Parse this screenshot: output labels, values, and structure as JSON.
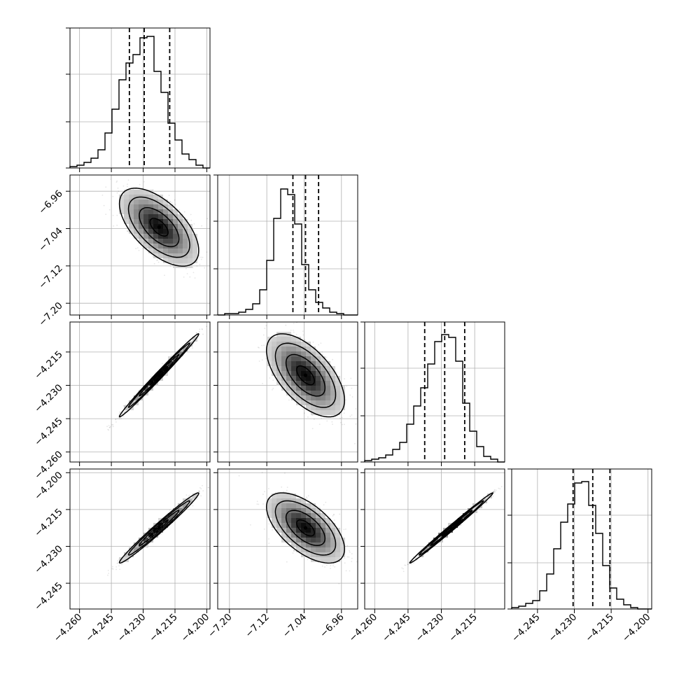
{
  "chart_data": {
    "type": "corner",
    "title": "",
    "parameters": [
      {
        "xlim": [
          -4.2645,
          -4.1985
        ],
        "xticks": [
          -4.26,
          -4.245,
          -4.23,
          -4.215,
          -4.2
        ],
        "xtick_labels": [
          "−4.260",
          "−4.245",
          "−4.230",
          "−4.215",
          "−4.200"
        ]
      },
      {
        "xlim": [
          -7.2252,
          -6.9252
        ],
        "xticks": [
          -7.2,
          -7.12,
          -7.04,
          -6.96
        ],
        "xtick_labels": [
          "−7.20",
          "−7.12",
          "−7.04",
          "−6.96"
        ]
      },
      {
        "xlim": [
          -4.2645,
          -4.2015
        ],
        "xticks": [
          -4.26,
          -4.245,
          -4.23,
          -4.215
        ],
        "xtick_labels": [
          "−4.260",
          "−4.245",
          "−4.230",
          "−4.215"
        ],
        "yticks": [
          -4.26,
          -4.245,
          -4.23,
          -4.215
        ],
        "ytick_labels": [
          "−4.260",
          "−4.245",
          "−4.230",
          "−4.215"
        ]
      },
      {
        "xlim": [
          -4.2555,
          -4.1985
        ],
        "xticks": [
          -4.245,
          -4.23,
          -4.215,
          -4.2
        ],
        "xtick_labels": [
          "−4.245",
          "−4.230",
          "−4.215",
          "−4.200"
        ],
        "yticks": [
          -4.245,
          -4.23,
          -4.215,
          -4.2
        ],
        "ytick_labels": [
          "−4.245",
          "−4.230",
          "−4.215",
          "−4.200"
        ]
      }
    ],
    "row1_yticks": [
      -7.2,
      -7.12,
      -7.04,
      -6.96
    ],
    "row1_ytick_labels": [
      "−7.20",
      "−7.12",
      "−7.04",
      "−6.96"
    ],
    "row1_ylim": [
      -7.2252,
      -6.9252
    ],
    "row2_ylim": [
      -4.2645,
      -4.2015
    ],
    "row3_ylim": [
      -4.2555,
      -4.1985
    ],
    "histograms": [
      {
        "bin_start": -4.2645,
        "bin_width": 0.0033,
        "counts": [
          0.01,
          0.02,
          0.04,
          0.07,
          0.13,
          0.25,
          0.42,
          0.63,
          0.75,
          0.81,
          0.93,
          0.94,
          0.69,
          0.54,
          0.32,
          0.2,
          0.1,
          0.06,
          0.02,
          0.0
        ],
        "quantiles": [
          -4.2365,
          -4.2295,
          -4.2175
        ]
      },
      {
        "bin_start": -7.2252,
        "bin_width": 0.015,
        "counts": [
          0.0,
          0.01,
          0.01,
          0.02,
          0.04,
          0.08,
          0.18,
          0.39,
          0.69,
          0.9,
          0.86,
          0.65,
          0.36,
          0.18,
          0.09,
          0.05,
          0.02,
          0.01,
          0.0,
          0.0
        ],
        "quantiles": [
          -7.064,
          -7.037,
          -7.009
        ]
      },
      {
        "bin_start": -4.2645,
        "bin_width": 0.00315,
        "counts": [
          0.01,
          0.02,
          0.03,
          0.05,
          0.09,
          0.14,
          0.27,
          0.4,
          0.53,
          0.7,
          0.86,
          0.91,
          0.89,
          0.72,
          0.42,
          0.22,
          0.11,
          0.04,
          0.02,
          0.0
        ],
        "quantiles": [
          -4.2375,
          -4.2285,
          -4.2195
        ]
      },
      {
        "bin_start": -4.2555,
        "bin_width": 0.00285,
        "counts": [
          0.01,
          0.02,
          0.04,
          0.06,
          0.13,
          0.25,
          0.43,
          0.62,
          0.75,
          0.9,
          0.91,
          0.74,
          0.54,
          0.31,
          0.15,
          0.07,
          0.03,
          0.01,
          0.0,
          0.0
        ],
        "quantiles": [
          -4.2305,
          -4.2225,
          -4.2155
        ]
      }
    ],
    "correlations": [
      {
        "row": 1,
        "col": 0,
        "mean": [
          -4.2225,
          -7.037
        ],
        "sd": [
          0.0085,
          0.038
        ],
        "rho": -0.6
      },
      {
        "row": 2,
        "col": 0,
        "mean": [
          -4.2225,
          -4.2255
        ],
        "sd": [
          0.0085,
          0.0085
        ],
        "rho": 0.993
      },
      {
        "row": 2,
        "col": 1,
        "mean": [
          -7.037,
          -4.2255
        ],
        "sd": [
          0.038,
          0.0085
        ],
        "rho": -0.6
      },
      {
        "row": 3,
        "col": 0,
        "mean": [
          -4.2225,
          -4.2225
        ],
        "sd": [
          0.0085,
          0.0065
        ],
        "rho": 0.985
      },
      {
        "row": 3,
        "col": 1,
        "mean": [
          -7.037,
          -4.2225
        ],
        "sd": [
          0.038,
          0.0065
        ],
        "rho": -0.6
      },
      {
        "row": 3,
        "col": 2,
        "mean": [
          -4.2255,
          -4.2225
        ],
        "sd": [
          0.0085,
          0.0065
        ],
        "rho": 0.995
      }
    ],
    "grid": true,
    "colors": {
      "line": "#000000",
      "grid": "#b0b0b0",
      "scatter": "#808080"
    }
  }
}
